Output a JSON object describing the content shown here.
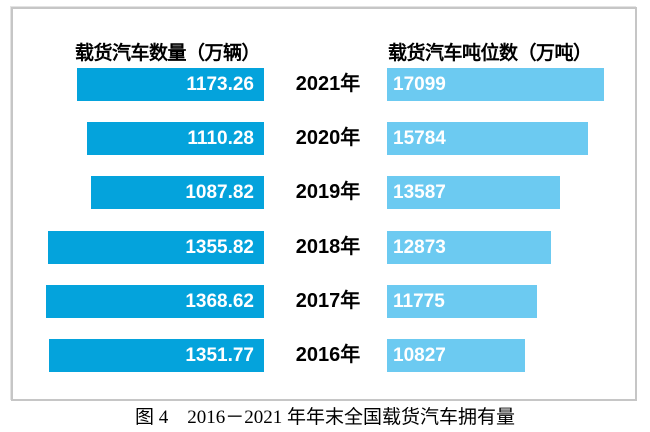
{
  "chart_data": {
    "type": "bar",
    "orientation": "horizontal",
    "layout": "paired-tornado",
    "categories": [
      "2021年",
      "2020年",
      "2019年",
      "2018年",
      "2017年",
      "2016年"
    ],
    "series": [
      {
        "name": "载货汽车数量（万辆）",
        "values": [
          1173.26,
          1110.28,
          1087.82,
          1355.82,
          1368.62,
          1351.77
        ],
        "color": "#04a3dc",
        "value_text_color": "#ffffff",
        "align": "right"
      },
      {
        "name": "载货汽车吨位数（万吨）",
        "values": [
          17099,
          15784,
          13587,
          12873,
          11775,
          10827
        ],
        "color": "#6ccaf1",
        "value_text_color": "#ffffff",
        "align": "left"
      }
    ],
    "title": "",
    "caption": "图 4　2016－2021 年年末全国载货汽车拥有量",
    "grid": false,
    "legend_position": "column-headers",
    "axis_labels_visible": false,
    "border_color": "#c6c6c6"
  }
}
